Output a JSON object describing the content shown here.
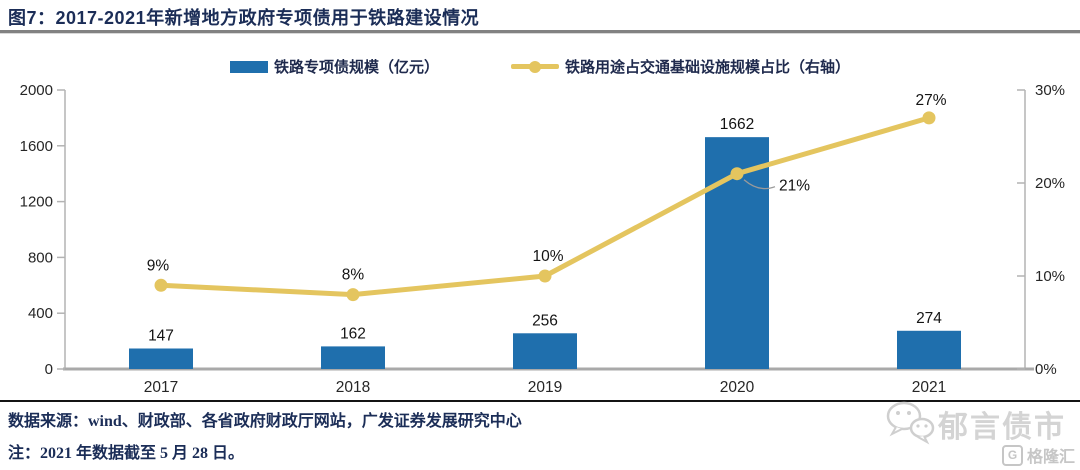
{
  "figure": {
    "title": "图7：2017-2021年新增地方政府专项债用于铁路建设情况",
    "source": "数据来源：wind、财政部、各省政府财政厅网站，广发证券发展研究中心",
    "note": "注：2021 年数据截至 5 月 28 日。"
  },
  "watermark": {
    "brand": "郁言债市",
    "logo_text": "格隆汇",
    "logo_letter": "G"
  },
  "chart_data": {
    "type": "bar",
    "subtype": "combo-bar-line-dual-axis",
    "categories": [
      "2017",
      "2018",
      "2019",
      "2020",
      "2021"
    ],
    "series": [
      {
        "name": "铁路专项债规模（亿元）",
        "type": "bar",
        "axis": "left",
        "color": "#1F6FAD",
        "values": [
          147,
          162,
          256,
          1662,
          274
        ],
        "value_labels": [
          "147",
          "162",
          "256",
          "1662",
          "274"
        ]
      },
      {
        "name": "铁路用途占交通基础设施规模占比（右轴）",
        "type": "line",
        "axis": "right",
        "color": "#E4C55F",
        "values": [
          9,
          8,
          10,
          21,
          27
        ],
        "value_labels": [
          "9%",
          "8%",
          "10%",
          "21%",
          "27%"
        ]
      }
    ],
    "left_axis": {
      "min": 0,
      "max": 2000,
      "step": 400,
      "ticks": [
        "0",
        "400",
        "800",
        "1200",
        "1600",
        "2000"
      ]
    },
    "right_axis": {
      "min": 0,
      "max": 30,
      "step": 10,
      "ticks": [
        "0%",
        "10%",
        "20%",
        "30%"
      ]
    },
    "grid": false,
    "legend_position": "top"
  }
}
